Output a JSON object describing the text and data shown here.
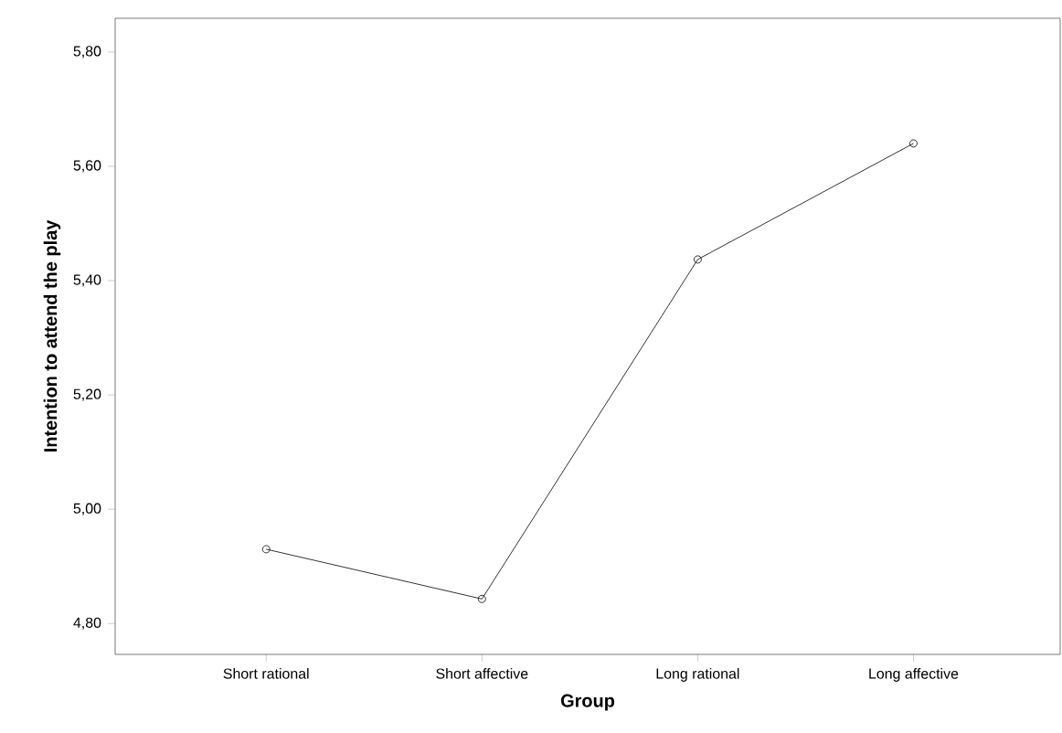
{
  "chart_data": {
    "type": "line",
    "xlabel": "Group",
    "ylabel": "Intention to attend the play",
    "categories": [
      "Short rational",
      "Short affective",
      "Long rational",
      "Long affective"
    ],
    "values": [
      4.93,
      4.843,
      5.437,
      5.64
    ],
    "color": "#000000",
    "marker": "circle",
    "line_style": "solid",
    "ylim": [
      4.746,
      5.859
    ],
    "yticks": [
      {
        "value": 4.8,
        "label": "4,80"
      },
      {
        "value": 5.0,
        "label": "5,00"
      },
      {
        "value": 5.2,
        "label": "5,20"
      },
      {
        "value": 5.4,
        "label": "5,40"
      },
      {
        "value": 5.6,
        "label": "5,60"
      },
      {
        "value": 5.8,
        "label": "5,80"
      }
    ],
    "grid": false
  }
}
